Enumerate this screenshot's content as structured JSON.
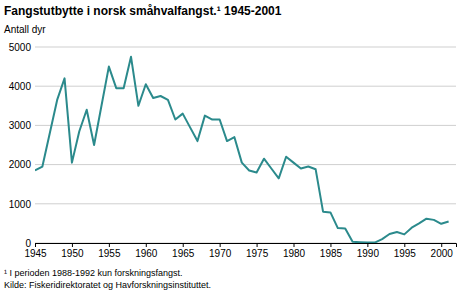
{
  "chart_data": {
    "type": "line",
    "title": "Fangstutbytte i norsk småhvalfangst.¹ 1945-2001",
    "y_label": "Antall dyr",
    "annotations": [
      "¹ I perioden 1988-1992 kun forskningsfangst.",
      "Kilde: Fiskeridirektoratet og Havforskningsinstituttet."
    ],
    "x": [
      1945,
      1946,
      1947,
      1948,
      1949,
      1950,
      1951,
      1952,
      1953,
      1954,
      1955,
      1956,
      1957,
      1958,
      1959,
      1960,
      1961,
      1962,
      1963,
      1964,
      1965,
      1966,
      1967,
      1968,
      1969,
      1970,
      1971,
      1972,
      1973,
      1974,
      1975,
      1976,
      1977,
      1978,
      1979,
      1980,
      1981,
      1982,
      1983,
      1984,
      1985,
      1986,
      1987,
      1988,
      1989,
      1990,
      1991,
      1992,
      1993,
      1994,
      1995,
      1996,
      1997,
      1998,
      1999,
      2000,
      2001
    ],
    "values": [
      1850,
      1950,
      2800,
      3650,
      4200,
      2050,
      2850,
      3400,
      2500,
      3500,
      4500,
      3950,
      3950,
      4750,
      3500,
      4050,
      3700,
      3750,
      3650,
      3150,
      3300,
      2950,
      2600,
      3250,
      3150,
      3150,
      2600,
      2700,
      2050,
      1850,
      1800,
      2150,
      1900,
      1650,
      2200,
      2050,
      1900,
      1950,
      1880,
      800,
      780,
      380,
      370,
      30,
      20,
      10,
      10,
      100,
      230,
      280,
      220,
      390,
      500,
      620,
      590,
      490,
      550
    ],
    "color": "#2b8a8c",
    "xlim": [
      1945,
      2002
    ],
    "xticks": [
      1945,
      1950,
      1955,
      1960,
      1965,
      1970,
      1975,
      1980,
      1985,
      1990,
      1995,
      2000
    ],
    "ylim": [
      0,
      5000
    ],
    "yticks": [
      0,
      1000,
      2000,
      3000,
      4000,
      5000
    ],
    "grid": true
  }
}
